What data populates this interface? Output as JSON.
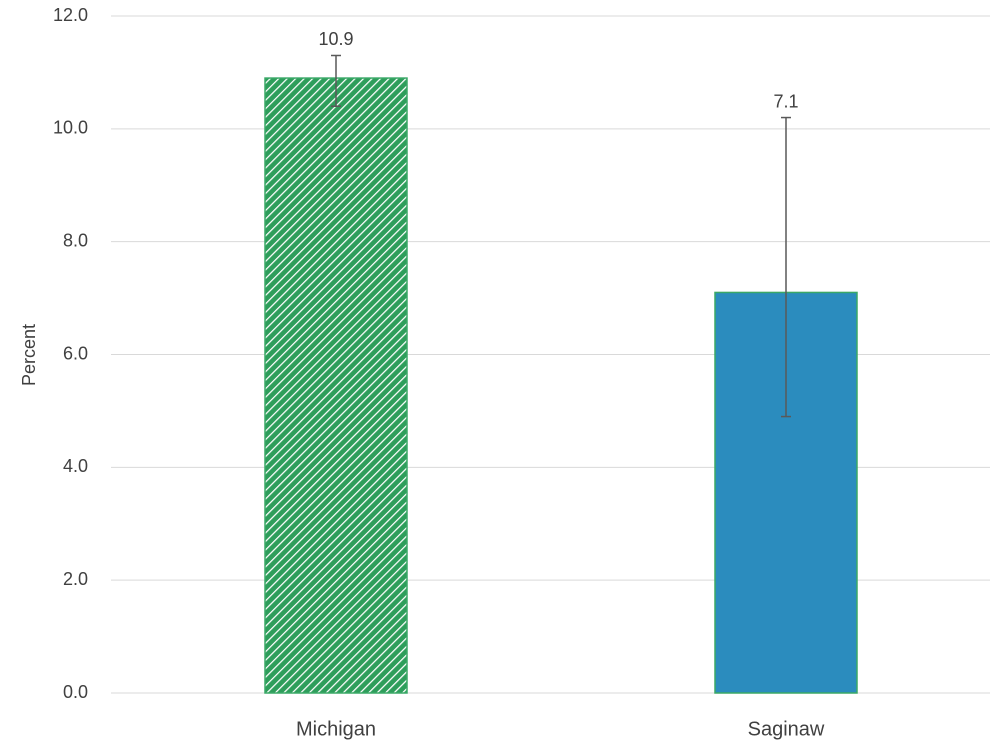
{
  "chart_data": {
    "type": "bar",
    "y_label": "Percent",
    "categories": [
      "Michigan",
      "Saginaw"
    ],
    "values": [
      10.9,
      7.1
    ],
    "ci_lower": [
      10.4,
      4.9
    ],
    "ci_upper": [
      11.3,
      10.2
    ],
    "colors": [
      "#2e9e5b",
      "#2b8cbe"
    ],
    "edge_color": "#3aa867",
    "bar_fills": [
      "hatched",
      "solid"
    ],
    "ylim": [
      0,
      12
    ],
    "yticks": [
      {
        "value": 0,
        "label": "0.0"
      },
      {
        "value": 2,
        "label": "2.0"
      },
      {
        "value": 4,
        "label": "4.0"
      },
      {
        "value": 6,
        "label": "6.0"
      },
      {
        "value": 8,
        "label": "8.0"
      },
      {
        "value": 10,
        "label": "10.0"
      },
      {
        "value": 12,
        "label": "12.0"
      }
    ],
    "grid": true
  }
}
